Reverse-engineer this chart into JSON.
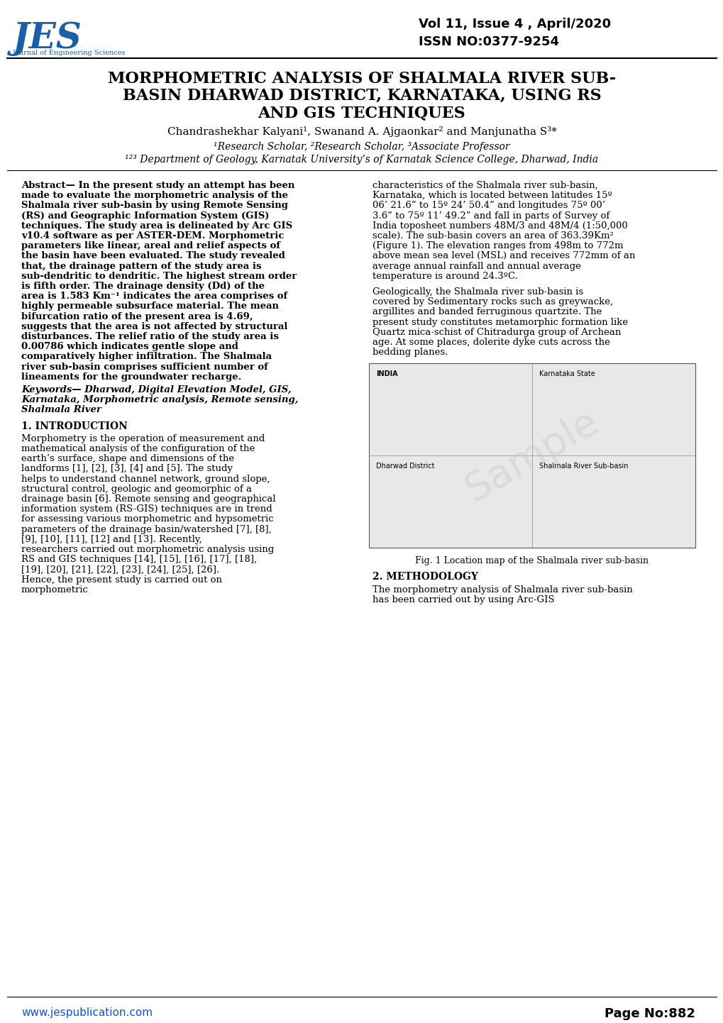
{
  "header_vol": "Vol 11, Issue 4 , April/2020",
  "header_issn": "ISSN NO:0377-9254",
  "title_line1": "MORPHOMETRIC ANALYSIS OF SHALMALA RIVER SUB-",
  "title_line2": "BASIN DHARWAD DISTRICT, KARNATAKA, USING RS",
  "title_line3": "AND GIS TECHNIQUES",
  "authors": "Chandrashekhar Kalyani¹, Swanand A. Ajgaonkar² and Manjunatha S³*",
  "affil1": "¹Research Scholar, ²Research Scholar, ³Associate Professor",
  "affil2": "¹²³ Department of Geology, Karnatak University’s of Karnatak Science College, Dharwad, India",
  "abstract_left": "Abstract— In the present study an attempt has been made to evaluate the morphometric analysis of the Shalmala river sub-basin by using Remote Sensing (RS) and Geographic Information System (GIS) techniques. The study area is delineated by Arc GIS v10.4 software as per ASTER-DEM. Morphometric parameters like linear, areal and relief aspects of the basin have been evaluated. The study revealed that, the drainage pattern of the study area is sub-dendritic to dendritic. The highest stream order is fifth order. The drainage density (Dd) of the area is 1.583 Km⁻¹ indicates the area comprises of highly permeable subsurface material. The mean bifurcation ratio of the present area is 4.69, suggests that the area is not affected by structural disturbances. The relief ratio of the study area is 0.00786 which indicates gentle slope and comparatively higher infiltration. The Shalmala river sub-basin comprises sufficient number of lineaments for the groundwater recharge.",
  "keywords": "Keywords— Dharwad, Digital Elevation Model, GIS, Karnataka, Morphometric analysis, Remote sensing, Shalmala River",
  "section1_title": "1. INTRODUCTION",
  "section1_text": "Morphometry is the operation of measurement and mathematical analysis of the configuration of the earth’s surface, shape and dimensions of the landforms [1], [2], [3], [4] and [5]. The study helps to understand channel network, ground slope, structural control, geologic and geomorphic of a drainage basin [6]. Remote sensing and geographical information system (RS-GIS) techniques are in trend for assessing various morphometric and hypsometric parameters of the drainage basin/watershed [7], [8], [9], [10], [11], [12] and [13]. Recently, researchers carried out morphometric analysis using RS and GIS techniques [14], [15], [16], [17], [18], [19], [20], [21], [22], [23], [24], [25], [26]. Hence, the present study is carried out on morphometric",
  "abstract_right": "characteristics of the Shalmala river sub-basin, Karnataka, which is located between latitudes 15º 06’ 21.6” to 15º 24’ 50.4” and longitudes 75º 00’ 3.6” to 75º 11’ 49.2” and fall in parts of Survey of India toposheet numbers 48M/3 and 48M/4 (1:50,000 scale). The sub-basin covers an area of 363.39Km² (Figure 1). The elevation ranges from 498m to 772m above mean sea level (MSL) and receives 772mm of an average annual rainfall and annual average temperature is around 24.3ºC.",
  "geo_text": "Geologically, the Shalmala river sub-basin is covered by Sedimentary rocks such as greywacke, argillites and banded ferruginous quartzite. The present study constitutes metamorphic formation like Quartz mica-schist of Chitradurga group of Archean age. At some places, dolerite dyke cuts across the bedding planes.",
  "fig_caption": "Fig. 1 Location map of the Shalmala river sub-basin",
  "section2_title": "2. METHODOLOGY",
  "section2_text": "The morphometry analysis of Shalmala river sub-basin has been carried out by using Arc-GIS",
  "footer_url": "www.jespublication.com",
  "footer_page": "Page No:882",
  "watermark": "Sample",
  "bg_color": "#ffffff",
  "text_color": "#000000",
  "header_line_color": "#000000",
  "footer_line_color": "#000000",
  "jes_logo_color": "#1a5fa8",
  "map_placeholder_color": "#d0d0d0"
}
